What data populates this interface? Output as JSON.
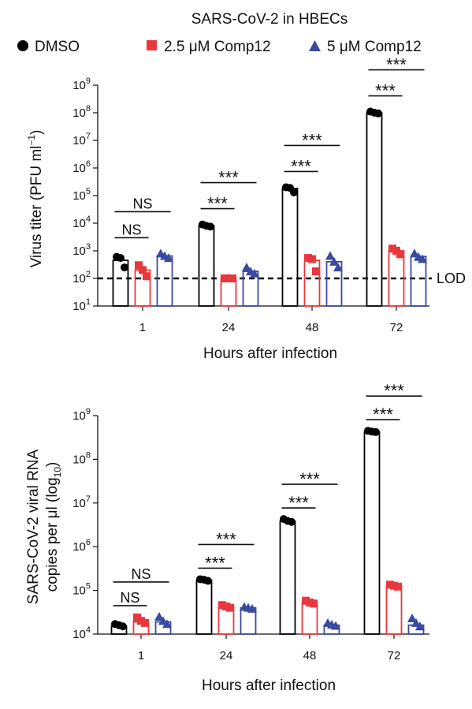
{
  "figure_title": "SARS-CoV-2 in HBECs",
  "legend": [
    {
      "label": "DMSO",
      "marker": "circle",
      "color": "#000000"
    },
    {
      "label": "2.5 μM Comp12",
      "marker": "square",
      "color": "#e8383d"
    },
    {
      "label": "5 μM Comp12",
      "marker": "triangle",
      "color": "#3a4aa0"
    }
  ],
  "chart_data": [
    {
      "type": "bar",
      "scale": "log",
      "ylabel_main": "Virus titer (PFU ml",
      "ylabel_sup": "−1",
      "ylabel_close": ")",
      "xlabel": "Hours after infection",
      "categories": [
        "1",
        "24",
        "48",
        "72"
      ],
      "yticks": [
        {
          "base": "10",
          "exp": "1",
          "value": 10
        },
        {
          "base": "10",
          "exp": "2",
          "value": 100
        },
        {
          "base": "10",
          "exp": "3",
          "value": 1000
        },
        {
          "base": "10",
          "exp": "4",
          "value": 10000
        },
        {
          "base": "10",
          "exp": "5",
          "value": 100000
        },
        {
          "base": "10",
          "exp": "6",
          "value": 1000000
        },
        {
          "base": "10",
          "exp": "7",
          "value": 10000000
        },
        {
          "base": "10",
          "exp": "8",
          "value": 100000000
        },
        {
          "base": "10",
          "exp": "9",
          "value": 1000000000
        }
      ],
      "ylim": [
        10,
        1000000000
      ],
      "reference_line": {
        "label": "LOD",
        "value": 100
      },
      "series": [
        {
          "name": "DMSO",
          "means": [
            450,
            8000,
            180000,
            100000000
          ],
          "points": [
            [
              600,
              550,
              250
            ],
            [
              9000,
              8000,
              7500
            ],
            [
              200000,
              190000,
              130000
            ],
            [
              110000000,
              100000000,
              95000000
            ]
          ]
        },
        {
          "name": "2.5 μM Comp12",
          "means": [
            200,
            100,
            450,
            1000
          ],
          "points": [
            [
              300,
              200,
              120
            ],
            [
              100,
              100,
              100
            ],
            [
              550,
              500,
              180
            ],
            [
              1200,
              1000,
              750
            ]
          ]
        },
        {
          "name": "5 μM Comp12",
          "means": [
            650,
            180,
            400,
            620
          ],
          "points": [
            [
              800,
              650,
              550
            ],
            [
              250,
              180,
              150
            ],
            [
              650,
              400,
              250
            ],
            [
              800,
              600,
              500
            ]
          ]
        }
      ],
      "significance": [
        {
          "group": "1",
          "lower": "NS",
          "upper": "NS"
        },
        {
          "group": "24",
          "lower": "***",
          "upper": "***"
        },
        {
          "group": "48",
          "lower": "***",
          "upper": "***"
        },
        {
          "group": "72",
          "lower": "***",
          "upper": "***"
        }
      ]
    },
    {
      "type": "bar",
      "scale": "log",
      "ylabel_line1": "SARS-CoV-2 viral RNA",
      "ylabel_line2_main": "copies per μl (log",
      "ylabel_line2_sub": "10",
      "ylabel_line2_close": ")",
      "xlabel": "Hours after infection",
      "categories": [
        "1",
        "24",
        "48",
        "72"
      ],
      "yticks": [
        {
          "base": "10",
          "exp": "4",
          "value": 10000
        },
        {
          "base": "10",
          "exp": "5",
          "value": 100000
        },
        {
          "base": "10",
          "exp": "6",
          "value": 1000000
        },
        {
          "base": "10",
          "exp": "7",
          "value": 10000000
        },
        {
          "base": "10",
          "exp": "8",
          "value": 100000000
        },
        {
          "base": "10",
          "exp": "9",
          "value": 1000000000
        }
      ],
      "ylim": [
        10000,
        1000000000
      ],
      "series": [
        {
          "name": "DMSO",
          "means": [
            15000,
            170000,
            3800000,
            420000000
          ],
          "points": [
            [
              17000,
              16000,
              15000
            ],
            [
              180000,
              175000,
              165000
            ],
            [
              4300000,
              3900000,
              3700000
            ],
            [
              450000000,
              430000000,
              420000000
            ]
          ]
        },
        {
          "name": "2.5 μM Comp12",
          "means": [
            19000,
            42000,
            52000,
            125000
          ],
          "points": [
            [
              24000,
              20000,
              18000
            ],
            [
              46000,
              43000,
              40000
            ],
            [
              58000,
              53000,
              50000
            ],
            [
              135000,
              128000,
              122000
            ]
          ]
        },
        {
          "name": "5 μM Comp12",
          "means": [
            19000,
            40000,
            16000,
            16000
          ],
          "points": [
            [
              25000,
              20000,
              17000
            ],
            [
              42000,
              40000,
              38000
            ],
            [
              18000,
              16500,
              15500
            ],
            [
              23000,
              18000,
              15000
            ]
          ]
        }
      ],
      "significance": [
        {
          "group": "1",
          "lower": "NS",
          "upper": "NS"
        },
        {
          "group": "24",
          "lower": "***",
          "upper": "***"
        },
        {
          "group": "48",
          "lower": "***",
          "upper": "***"
        },
        {
          "group": "72",
          "lower": "***",
          "upper": "***"
        }
      ]
    }
  ]
}
